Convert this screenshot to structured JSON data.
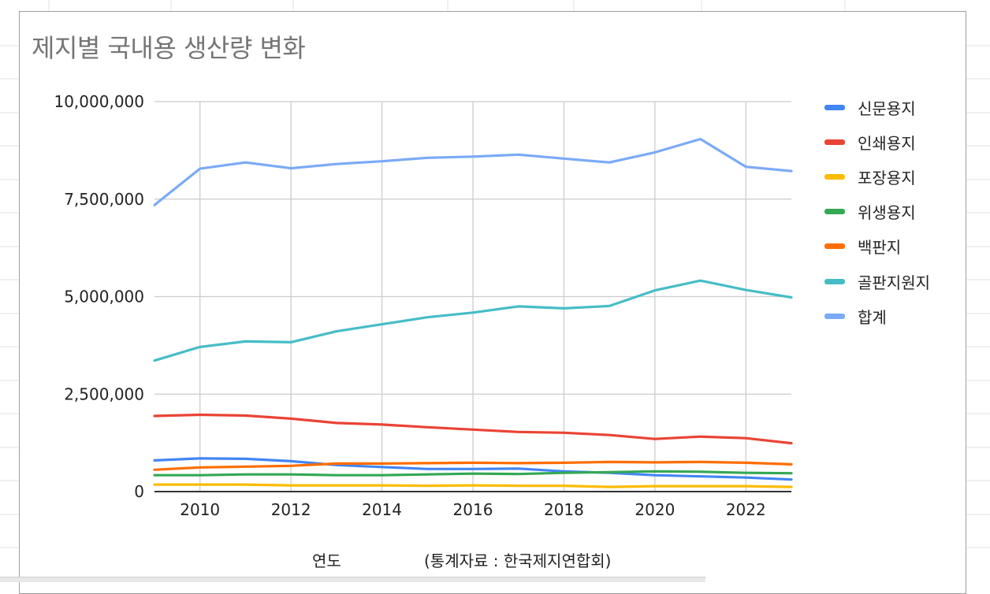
{
  "chart_data": {
    "type": "line",
    "title": "제지별 국내용 생산량 변화",
    "xlabel": "연도",
    "xnote": "(통계자료 : 한국제지연합회)",
    "ylabel": "",
    "xlim": [
      2009,
      2023
    ],
    "ylim": [
      0,
      10000000
    ],
    "x_ticks": [
      2010,
      2012,
      2014,
      2016,
      2018,
      2020,
      2022
    ],
    "y_ticks": [
      0,
      2500000,
      5000000,
      7500000,
      10000000
    ],
    "y_tick_labels": [
      "0",
      "2,500,000",
      "5,000,000",
      "7,500,000",
      "10,000,000"
    ],
    "grid": true,
    "legend_position": "right",
    "x": [
      2009,
      2010,
      2011,
      2012,
      2013,
      2014,
      2015,
      2016,
      2017,
      2018,
      2019,
      2020,
      2021,
      2022,
      2023
    ],
    "series": [
      {
        "name": "신문용지",
        "color": "#4285f4",
        "values": [
          800000,
          850000,
          840000,
          780000,
          680000,
          630000,
          580000,
          580000,
          590000,
          520000,
          480000,
          420000,
          390000,
          360000,
          310000
        ]
      },
      {
        "name": "인쇄용지",
        "color": "#ea4335",
        "values": [
          1940000,
          1970000,
          1950000,
          1870000,
          1760000,
          1720000,
          1650000,
          1590000,
          1530000,
          1510000,
          1450000,
          1350000,
          1410000,
          1370000,
          1240000
        ]
      },
      {
        "name": "포장용지",
        "color": "#fbbc04",
        "values": [
          180000,
          180000,
          180000,
          160000,
          160000,
          160000,
          150000,
          160000,
          150000,
          150000,
          120000,
          140000,
          140000,
          140000,
          120000
        ]
      },
      {
        "name": "위생용지",
        "color": "#34a853",
        "values": [
          420000,
          420000,
          440000,
          440000,
          420000,
          420000,
          440000,
          460000,
          450000,
          480000,
          500000,
          520000,
          510000,
          480000,
          470000
        ]
      },
      {
        "name": "백판지",
        "color": "#ff6d01",
        "values": [
          560000,
          620000,
          640000,
          660000,
          720000,
          720000,
          730000,
          740000,
          730000,
          740000,
          760000,
          750000,
          760000,
          740000,
          700000
        ]
      },
      {
        "name": "골판지원지",
        "color": "#46bdc6",
        "values": [
          3360000,
          3710000,
          3850000,
          3830000,
          4110000,
          4290000,
          4470000,
          4590000,
          4750000,
          4700000,
          4760000,
          5160000,
          5410000,
          5170000,
          4980000
        ]
      },
      {
        "name": "합계",
        "color": "#7baaf7",
        "values": [
          7350000,
          8280000,
          8440000,
          8290000,
          8400000,
          8470000,
          8560000,
          8590000,
          8640000,
          8540000,
          8440000,
          8700000,
          9040000,
          8330000,
          8220000
        ]
      }
    ]
  }
}
